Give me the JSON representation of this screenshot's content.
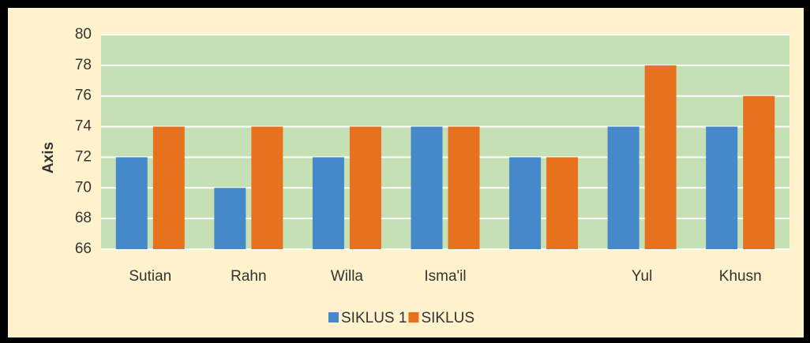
{
  "chart_data": {
    "type": "bar",
    "y_label": "Axis",
    "categories": [
      "Sutian",
      "Rahn",
      "Willa",
      "Isma'il",
      null,
      "Yul",
      "Khusn"
    ],
    "series": [
      {
        "name": "SIKLUS 1",
        "color": "#4589cb",
        "values": [
          72,
          70,
          72,
          74,
          72,
          74,
          74
        ]
      },
      {
        "name": "SIKLUS",
        "color": "#e8711d",
        "values": [
          74,
          74,
          74,
          74,
          72,
          78,
          76
        ]
      }
    ],
    "ylim": [
      66,
      80
    ],
    "yticks": [
      66,
      68,
      70,
      72,
      74,
      76,
      78,
      80
    ],
    "grid": true,
    "legend": "bottom"
  }
}
